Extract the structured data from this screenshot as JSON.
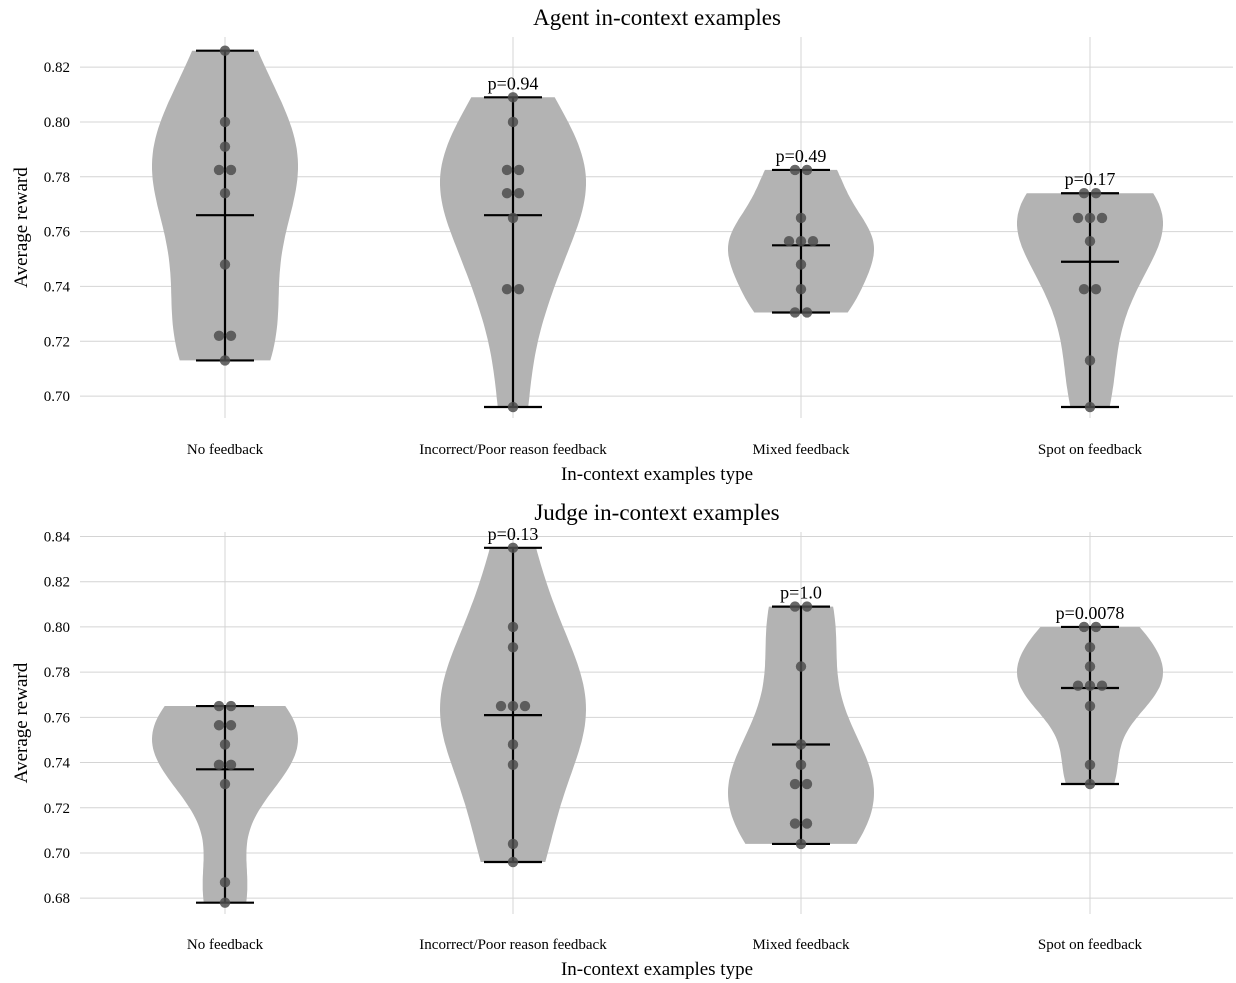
{
  "chart_data": [
    {
      "type": "violin",
      "title": "Agent in-context examples",
      "xlabel": "In-context examples type",
      "ylabel": "Average reward",
      "categories": [
        "No feedback",
        "Incorrect/Poor reason feedback",
        "Mixed feedback",
        "Spot on feedback"
      ],
      "ylim": [
        0.692,
        0.831
      ],
      "yticks": [
        0.7,
        0.72,
        0.74,
        0.76,
        0.78,
        0.8,
        0.82
      ],
      "grid": true,
      "groups": [
        {
          "category": "No feedback",
          "points": [
            0.826,
            0.8,
            0.791,
            0.7825,
            0.7825,
            0.774,
            0.748,
            0.722,
            0.722,
            0.713
          ],
          "min": 0.713,
          "max": 0.826,
          "mean": 0.766,
          "p_value_label": ""
        },
        {
          "category": "Incorrect/Poor reason feedback",
          "points": [
            0.809,
            0.8,
            0.7825,
            0.7825,
            0.774,
            0.774,
            0.765,
            0.739,
            0.739,
            0.696
          ],
          "min": 0.696,
          "max": 0.809,
          "mean": 0.766,
          "p_value_label": "p=0.94"
        },
        {
          "category": "Mixed feedback",
          "points": [
            0.7825,
            0.7825,
            0.765,
            0.7565,
            0.7565,
            0.7565,
            0.748,
            0.739,
            0.7305,
            0.7305
          ],
          "min": 0.7305,
          "max": 0.7825,
          "mean": 0.755,
          "p_value_label": "p=0.49"
        },
        {
          "category": "Spot on feedback",
          "points": [
            0.774,
            0.774,
            0.765,
            0.765,
            0.765,
            0.7565,
            0.739,
            0.739,
            0.713,
            0.696
          ],
          "min": 0.696,
          "max": 0.774,
          "mean": 0.749,
          "p_value_label": "p=0.17"
        }
      ]
    },
    {
      "type": "violin",
      "title": "Judge in-context examples",
      "xlabel": "In-context examples type",
      "ylabel": "Average reward",
      "categories": [
        "No feedback",
        "Incorrect/Poor reason feedback",
        "Mixed feedback",
        "Spot on feedback"
      ],
      "ylim": [
        0.673,
        0.842
      ],
      "yticks": [
        0.68,
        0.7,
        0.72,
        0.74,
        0.76,
        0.78,
        0.8,
        0.82,
        0.84
      ],
      "grid": true,
      "groups": [
        {
          "category": "No feedback",
          "points": [
            0.765,
            0.765,
            0.7565,
            0.7565,
            0.748,
            0.739,
            0.739,
            0.7305,
            0.687,
            0.678
          ],
          "min": 0.678,
          "max": 0.765,
          "mean": 0.737,
          "p_value_label": ""
        },
        {
          "category": "Incorrect/Poor reason feedback",
          "points": [
            0.835,
            0.8,
            0.791,
            0.765,
            0.765,
            0.765,
            0.748,
            0.739,
            0.704,
            0.696
          ],
          "min": 0.696,
          "max": 0.835,
          "mean": 0.761,
          "p_value_label": "p=0.13"
        },
        {
          "category": "Mixed feedback",
          "points": [
            0.809,
            0.809,
            0.7825,
            0.748,
            0.739,
            0.7305,
            0.7305,
            0.713,
            0.713,
            0.704
          ],
          "min": 0.704,
          "max": 0.809,
          "mean": 0.748,
          "p_value_label": "p=1.0"
        },
        {
          "category": "Spot on feedback",
          "points": [
            0.8,
            0.8,
            0.791,
            0.7825,
            0.774,
            0.774,
            0.774,
            0.765,
            0.739,
            0.7305
          ],
          "min": 0.7305,
          "max": 0.8,
          "mean": 0.773,
          "p_value_label": "p=0.0078"
        }
      ]
    }
  ]
}
